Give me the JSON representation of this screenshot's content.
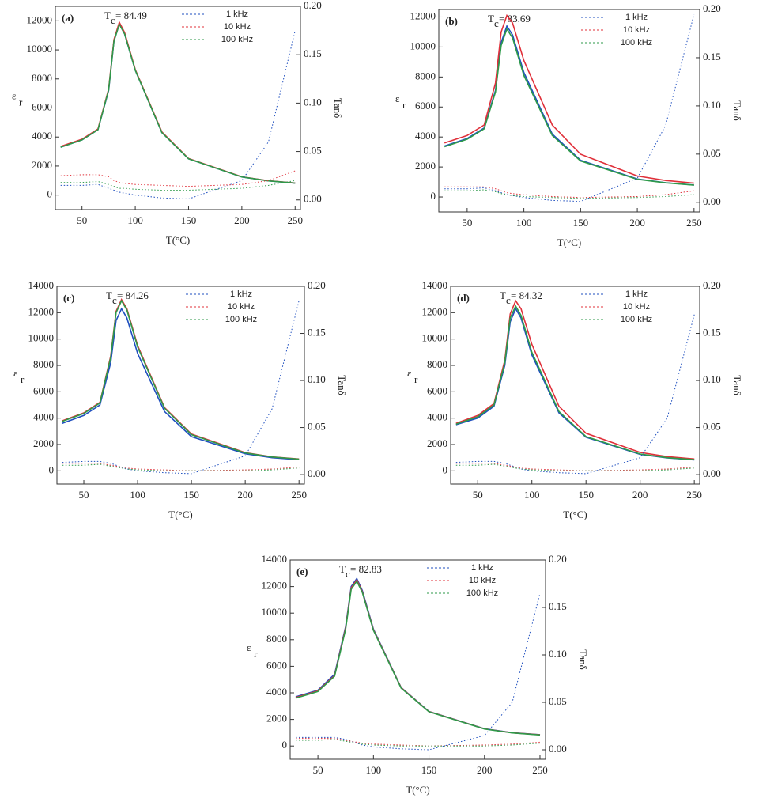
{
  "chart_data": [
    {
      "type": "line",
      "panel_label": "(a)",
      "tc_symbol": "T",
      "tc_subscript": "c",
      "tc_text": "= 84.49",
      "xlabel": "T(°C)",
      "ylabel": "ε",
      "ylabel_subscript": "r",
      "y2label": "Tanδ",
      "x": [
        30,
        50,
        65,
        75,
        80,
        85,
        90,
        100,
        125,
        150,
        200,
        225,
        250
      ],
      "xlim": [
        25,
        255
      ],
      "xticks": [
        50,
        100,
        150,
        200,
        250
      ],
      "ylim": [
        -1000,
        13000
      ],
      "yticks": [
        0,
        2000,
        4000,
        6000,
        8000,
        10000,
        12000
      ],
      "y2lim": [
        -0.01,
        0.2
      ],
      "y2ticks": [
        {
          "value": 0,
          "label": "0.00"
        },
        0.05,
        {
          "value": 0.1,
          "label": "0.10"
        },
        0.15,
        {
          "value": 0.2,
          "label": "0.20"
        }
      ],
      "series": [
        {
          "name": "1 kHz",
          "color": "#1f4fbf",
          "values": [
            3300,
            3800,
            4500,
            7200,
            10600,
            11800,
            11100,
            8600,
            4300,
            2500,
            1250,
            980,
            820
          ]
        },
        {
          "name": "10 kHz",
          "color": "#e0303a",
          "values": [
            3350,
            3850,
            4550,
            7300,
            10700,
            11900,
            11200,
            8650,
            4350,
            2520,
            1260,
            990,
            830
          ]
        },
        {
          "name": "100 kHz",
          "color": "#2e9a4a",
          "values": [
            3300,
            3800,
            4500,
            7250,
            10600,
            11750,
            11100,
            8600,
            4300,
            2500,
            1250,
            980,
            820
          ]
        },
        {
          "color": "#1f4fbf",
          "axis": "y2",
          "dash": "dotted",
          "values": [
            0.015,
            0.015,
            0.016,
            0.012,
            0.01,
            0.008,
            0.007,
            0.005,
            0.002,
            0.001,
            0.02,
            0.06,
            0.175
          ]
        },
        {
          "color": "#e0303a",
          "axis": "y2",
          "dash": "dotted",
          "values": [
            0.025,
            0.026,
            0.026,
            0.024,
            0.02,
            0.018,
            0.017,
            0.016,
            0.015,
            0.014,
            0.016,
            0.02,
            0.03
          ]
        },
        {
          "color": "#2e9a4a",
          "axis": "y2",
          "dash": "dotted",
          "values": [
            0.018,
            0.018,
            0.019,
            0.016,
            0.014,
            0.012,
            0.012,
            0.011,
            0.01,
            0.01,
            0.012,
            0.015,
            0.02
          ]
        }
      ]
    },
    {
      "type": "line",
      "panel_label": "(b)",
      "tc_symbol": "T",
      "tc_subscript": "c",
      "tc_text": "= 83.69",
      "xlabel": "T(°C)",
      "ylabel": "ε",
      "ylabel_subscript": "r",
      "y2label": "Tanδ",
      "x": [
        30,
        50,
        65,
        75,
        80,
        85,
        90,
        100,
        125,
        150,
        200,
        225,
        250
      ],
      "xlim": [
        25,
        255
      ],
      "xticks": [
        50,
        100,
        150,
        200,
        250
      ],
      "ylim": [
        -1000,
        12500
      ],
      "yticks": [
        0,
        2000,
        4000,
        6000,
        8000,
        10000,
        12000
      ],
      "y2lim": [
        -0.01,
        0.2
      ],
      "y2ticks": [
        {
          "value": 0,
          "label": "0.00"
        },
        0.05,
        {
          "value": 0.1,
          "label": "0.10"
        },
        0.15,
        {
          "value": 0.2,
          "label": "0.20"
        }
      ],
      "series": [
        {
          "name": "1 kHz",
          "color": "#1f4fbf",
          "values": [
            3400,
            3900,
            4600,
            7100,
            10300,
            11400,
            10800,
            8300,
            4200,
            2450,
            1200,
            950,
            800
          ]
        },
        {
          "name": "10 kHz",
          "color": "#e0303a",
          "values": [
            3600,
            4100,
            4800,
            7600,
            11000,
            12100,
            11600,
            9100,
            4800,
            2850,
            1400,
            1100,
            920
          ]
        },
        {
          "name": "100 kHz",
          "color": "#2e9a4a",
          "values": [
            3350,
            3850,
            4550,
            7000,
            10100,
            11200,
            10600,
            8100,
            4100,
            2400,
            1180,
            940,
            790
          ]
        },
        {
          "color": "#1f4fbf",
          "axis": "y2",
          "dash": "dotted",
          "values": [
            0.014,
            0.014,
            0.015,
            0.012,
            0.01,
            0.008,
            0.007,
            0.005,
            0.002,
            0.001,
            0.025,
            0.08,
            0.195
          ]
        },
        {
          "color": "#e0303a",
          "axis": "y2",
          "dash": "dotted",
          "values": [
            0.016,
            0.016,
            0.016,
            0.014,
            0.012,
            0.01,
            0.009,
            0.008,
            0.006,
            0.005,
            0.006,
            0.008,
            0.012
          ]
        },
        {
          "color": "#2e9a4a",
          "axis": "y2",
          "dash": "dotted",
          "values": [
            0.012,
            0.012,
            0.013,
            0.011,
            0.009,
            0.008,
            0.007,
            0.006,
            0.005,
            0.004,
            0.005,
            0.006,
            0.008
          ]
        }
      ]
    },
    {
      "type": "line",
      "panel_label": "(c)",
      "tc_symbol": "T",
      "tc_subscript": "c",
      "tc_text": "= 84.26",
      "xlabel": "T(°C)",
      "ylabel": "ε",
      "ylabel_subscript": "r",
      "y2label": "Tanδ",
      "x": [
        30,
        50,
        65,
        75,
        80,
        85,
        90,
        100,
        125,
        150,
        200,
        225,
        250
      ],
      "xlim": [
        25,
        255
      ],
      "xticks": [
        50,
        100,
        150,
        200,
        250
      ],
      "ylim": [
        -1000,
        14000
      ],
      "yticks": [
        0,
        2000,
        4000,
        6000,
        8000,
        10000,
        12000,
        14000
      ],
      "y2lim": [
        -0.01,
        0.2
      ],
      "y2ticks": [
        {
          "value": 0,
          "label": "0.00"
        },
        0.05,
        {
          "value": 0.1,
          "label": "0.10"
        },
        0.15,
        {
          "value": 0.2,
          "label": "0.20"
        }
      ],
      "series": [
        {
          "name": "1 kHz",
          "color": "#1f4fbf",
          "values": [
            3600,
            4200,
            5000,
            8200,
            11400,
            12300,
            11600,
            8900,
            4500,
            2600,
            1300,
            1000,
            850
          ]
        },
        {
          "name": "10 kHz",
          "color": "#e0303a",
          "values": [
            3800,
            4400,
            5200,
            8700,
            12100,
            13000,
            12300,
            9500,
            4800,
            2800,
            1380,
            1060,
            900
          ]
        },
        {
          "name": "100 kHz",
          "color": "#2e9a4a",
          "values": [
            3750,
            4350,
            5150,
            8600,
            12000,
            12900,
            12200,
            9400,
            4750,
            2750,
            1360,
            1050,
            890
          ]
        },
        {
          "color": "#1f4fbf",
          "axis": "y2",
          "dash": "dotted",
          "values": [
            0.013,
            0.014,
            0.014,
            0.012,
            0.01,
            0.008,
            0.006,
            0.004,
            0.002,
            0.001,
            0.02,
            0.07,
            0.185
          ]
        },
        {
          "color": "#e0303a",
          "axis": "y2",
          "dash": "dotted",
          "values": [
            0.012,
            0.012,
            0.012,
            0.01,
            0.009,
            0.008,
            0.007,
            0.006,
            0.005,
            0.004,
            0.005,
            0.006,
            0.008
          ]
        },
        {
          "color": "#2e9a4a",
          "axis": "y2",
          "dash": "dotted",
          "values": [
            0.01,
            0.01,
            0.011,
            0.009,
            0.008,
            0.007,
            0.006,
            0.005,
            0.004,
            0.004,
            0.004,
            0.005,
            0.007
          ]
        }
      ]
    },
    {
      "type": "line",
      "panel_label": "(d)",
      "tc_symbol": "T",
      "tc_subscript": "c",
      "tc_text": "= 84.32",
      "xlabel": "T(°C)",
      "ylabel": "ε",
      "ylabel_subscript": "r",
      "y2label": "Tanδ",
      "x": [
        30,
        50,
        65,
        75,
        80,
        85,
        90,
        100,
        125,
        150,
        200,
        225,
        250
      ],
      "xlim": [
        25,
        255
      ],
      "xticks": [
        50,
        100,
        150,
        200,
        250
      ],
      "ylim": [
        -1000,
        14000
      ],
      "yticks": [
        0,
        2000,
        4000,
        6000,
        8000,
        10000,
        12000,
        14000
      ],
      "y2lim": [
        -0.01,
        0.2
      ],
      "y2ticks": [
        {
          "value": 0,
          "label": "0.00"
        },
        0.05,
        {
          "value": 0.1,
          "label": "0.10"
        },
        0.15,
        {
          "value": 0.2,
          "label": "0.20"
        }
      ],
      "series": [
        {
          "name": "1 kHz",
          "color": "#1f4fbf",
          "values": [
            3500,
            4000,
            4900,
            8000,
            11300,
            12300,
            11600,
            8800,
            4400,
            2550,
            1250,
            980,
            830
          ]
        },
        {
          "name": "10 kHz",
          "color": "#e0303a",
          "values": [
            3600,
            4200,
            5100,
            8400,
            11900,
            12900,
            12300,
            9600,
            4900,
            2850,
            1400,
            1080,
            900
          ]
        },
        {
          "name": "100 kHz",
          "color": "#2e9a4a",
          "values": [
            3550,
            4100,
            5000,
            8200,
            11600,
            12500,
            11800,
            9000,
            4500,
            2600,
            1280,
            1000,
            850
          ]
        },
        {
          "color": "#1f4fbf",
          "axis": "y2",
          "dash": "dotted",
          "values": [
            0.013,
            0.014,
            0.014,
            0.012,
            0.01,
            0.008,
            0.006,
            0.004,
            0.002,
            0.001,
            0.018,
            0.06,
            0.17
          ]
        },
        {
          "color": "#e0303a",
          "axis": "y2",
          "dash": "dotted",
          "values": [
            0.012,
            0.012,
            0.012,
            0.01,
            0.009,
            0.008,
            0.007,
            0.006,
            0.005,
            0.004,
            0.005,
            0.006,
            0.008
          ]
        },
        {
          "color": "#2e9a4a",
          "axis": "y2",
          "dash": "dotted",
          "values": [
            0.01,
            0.01,
            0.011,
            0.009,
            0.008,
            0.007,
            0.006,
            0.005,
            0.004,
            0.004,
            0.004,
            0.005,
            0.007
          ]
        }
      ]
    },
    {
      "type": "line",
      "panel_label": "(e)",
      "tc_symbol": "T",
      "tc_subscript": "c",
      "tc_text": "= 82.83",
      "xlabel": "T(°C)",
      "ylabel": "ε",
      "ylabel_subscript": "r",
      "y2label": "Tanδ",
      "x": [
        30,
        50,
        65,
        75,
        80,
        85,
        90,
        100,
        125,
        150,
        200,
        225,
        250
      ],
      "xlim": [
        25,
        255
      ],
      "xticks": [
        50,
        100,
        150,
        200,
        250
      ],
      "ylim": [
        -1000,
        14000
      ],
      "yticks": [
        0,
        2000,
        4000,
        6000,
        8000,
        10000,
        12000,
        14000
      ],
      "y2lim": [
        -0.01,
        0.2
      ],
      "y2ticks": [
        {
          "value": 0,
          "label": "0.00"
        },
        0.05,
        {
          "value": 0.1,
          "label": "0.10"
        },
        0.15,
        {
          "value": 0.2,
          "label": "0.20"
        }
      ],
      "series": [
        {
          "name": "1 kHz",
          "color": "#1f4fbf",
          "values": [
            3700,
            4200,
            5400,
            9000,
            12000,
            12600,
            11700,
            8800,
            4400,
            2600,
            1300,
            1000,
            850
          ]
        },
        {
          "name": "10 kHz",
          "color": "#e0303a",
          "values": [
            3650,
            4150,
            5300,
            8900,
            11900,
            12500,
            11600,
            8750,
            4380,
            2590,
            1290,
            990,
            840
          ]
        },
        {
          "name": "100 kHz",
          "color": "#2e9a4a",
          "values": [
            3600,
            4100,
            5250,
            8800,
            11800,
            12400,
            11550,
            8700,
            4350,
            2580,
            1280,
            980,
            830
          ]
        },
        {
          "color": "#1f4fbf",
          "axis": "y2",
          "dash": "dotted",
          "values": [
            0.013,
            0.013,
            0.013,
            0.011,
            0.009,
            0.007,
            0.005,
            0.003,
            0.001,
            0.0,
            0.015,
            0.05,
            0.165
          ]
        },
        {
          "color": "#e0303a",
          "axis": "y2",
          "dash": "dotted",
          "values": [
            0.012,
            0.012,
            0.012,
            0.01,
            0.009,
            0.008,
            0.007,
            0.006,
            0.005,
            0.004,
            0.005,
            0.006,
            0.008
          ]
        },
        {
          "color": "#2e9a4a",
          "axis": "y2",
          "dash": "dotted",
          "values": [
            0.01,
            0.01,
            0.011,
            0.009,
            0.008,
            0.007,
            0.006,
            0.005,
            0.004,
            0.004,
            0.004,
            0.005,
            0.007
          ]
        }
      ]
    }
  ]
}
